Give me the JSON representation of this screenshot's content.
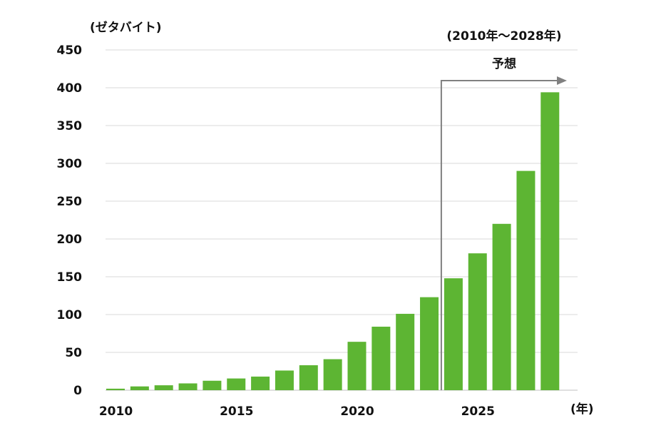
{
  "chart_data": {
    "type": "bar",
    "title": "",
    "xlabel": "(年)",
    "ylabel": "(ゼタバイト)",
    "ylim": [
      0,
      450
    ],
    "yticks": [
      0,
      50,
      100,
      150,
      200,
      250,
      300,
      350,
      400,
      450
    ],
    "xtick_labels": [
      "2010",
      "2015",
      "2020",
      "2025"
    ],
    "categories": [
      2010,
      2011,
      2012,
      2013,
      2014,
      2015,
      2016,
      2017,
      2018,
      2019,
      2020,
      2021,
      2022,
      2023,
      2024,
      2025,
      2026,
      2027,
      2028
    ],
    "values": [
      2,
      5,
      6.5,
      9,
      12.5,
      15.5,
      18,
      26,
      33,
      41,
      64,
      84,
      101,
      123,
      148,
      181,
      220,
      290,
      394
    ],
    "grid": true,
    "bar_color": "#5db533",
    "grid_color": "#d9d9d9",
    "annotation": {
      "range_label": "(2010年〜2028年)",
      "label": "予想",
      "start_category": 2024,
      "line_color": "#808080"
    }
  }
}
